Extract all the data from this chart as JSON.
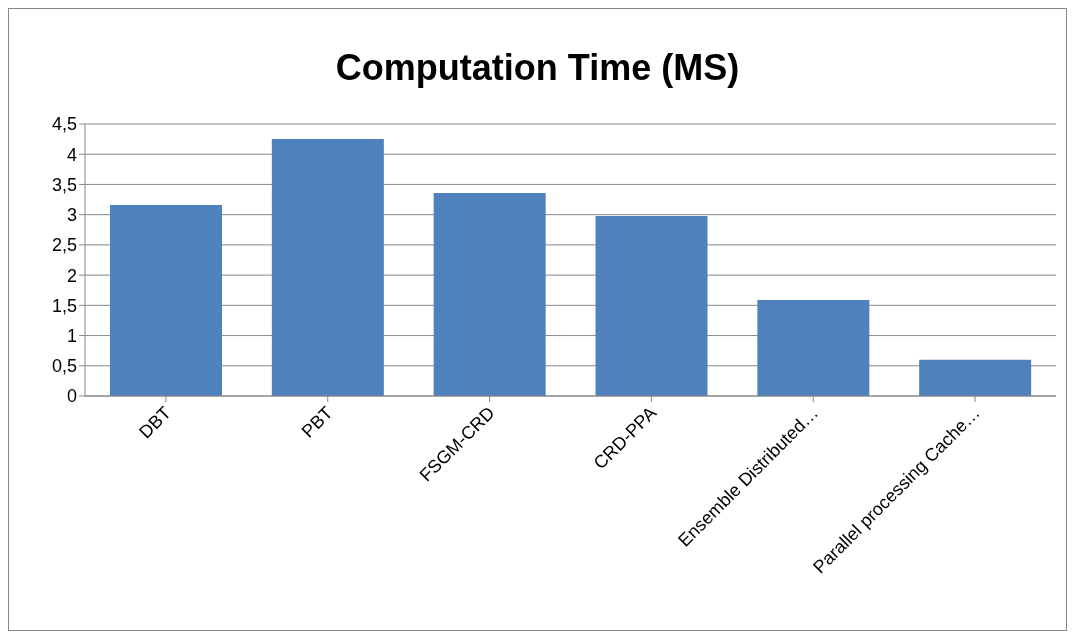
{
  "chart_data": {
    "type": "bar",
    "title": "Computation Time (MS)",
    "categories": [
      "DBT",
      "PBT",
      "FSGM-CRD",
      "CRD-PPA",
      "Ensemble Distributed…",
      "Parallel processing Cache…"
    ],
    "values": [
      3.16,
      4.25,
      3.36,
      2.98,
      1.59,
      0.6
    ],
    "color": "#4f81bd",
    "ylim": [
      0,
      4.5
    ],
    "yticks": [
      0,
      {
        "value": 0.5,
        "label": "0,5"
      },
      1,
      {
        "value": 1.5,
        "label": "1,5"
      },
      2,
      {
        "value": 2.5,
        "label": "2,5"
      },
      3,
      {
        "value": 3.5,
        "label": "3,5"
      },
      4,
      {
        "value": 4.5,
        "label": "4,5"
      }
    ],
    "grid": "y"
  }
}
